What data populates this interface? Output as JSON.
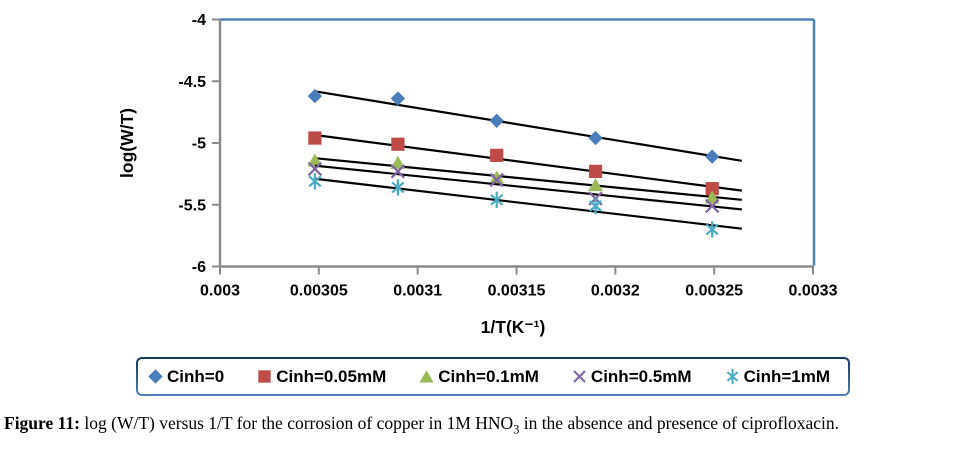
{
  "figure": {
    "caption_label": "Figure 11:",
    "caption_before_sub": " log (W/T) versus 1/T for the corrosion of copper in 1M HNO",
    "caption_sub": "3",
    "caption_after_sub": " in the absence and presence of ciprofloxacin."
  },
  "chart_data": {
    "type": "scatter",
    "title": "",
    "xlabel": "1/T(K⁻¹)",
    "ylabel": "log(W/T)",
    "xlim": [
      0.003,
      0.0033
    ],
    "ylim": [
      -6,
      -4
    ],
    "grid": false,
    "legend_position": "bottom",
    "axis_color": "#8a8a8a",
    "plot_border_color": "#4f81bd",
    "xticks": {
      "values": [
        0.003,
        0.00305,
        0.0031,
        0.00315,
        0.0032,
        0.00325,
        0.0033
      ],
      "labels": [
        "0.003",
        "0.00305",
        "0.0031",
        "0.00315",
        "0.0032",
        "0.00325",
        "0.0033"
      ]
    },
    "yticks": {
      "values": [
        -4,
        -4.5,
        -5,
        -5.5,
        -6
      ],
      "labels": [
        "-4",
        "-4.5",
        "-5",
        "-5.5",
        "-6"
      ]
    },
    "x": [
      0.003048,
      0.00309,
      0.00314,
      0.00319,
      0.003249
    ],
    "series": [
      {
        "name": "Cinh=0",
        "marker": "diamond",
        "color": "#4a7ebb",
        "values": [
          -4.62,
          -4.64,
          -4.82,
          -4.96,
          -5.11
        ]
      },
      {
        "name": "Cinh=0.05mM",
        "marker": "square",
        "color": "#bf4b47",
        "values": [
          -4.96,
          -5.01,
          -5.1,
          -5.23,
          -5.37
        ]
      },
      {
        "name": "Cinh=0.1mM",
        "marker": "triangle",
        "color": "#9aba58",
        "values": [
          -5.14,
          -5.16,
          -5.28,
          -5.34,
          -5.44
        ]
      },
      {
        "name": "Cinh=0.5mM",
        "marker": "x",
        "color": "#7e63a1",
        "values": [
          -5.21,
          -5.23,
          -5.3,
          -5.45,
          -5.51
        ]
      },
      {
        "name": "Cinh=1mM",
        "marker": "star6",
        "color": "#4aabc5",
        "values": [
          -5.31,
          -5.36,
          -5.46,
          -5.51,
          -5.7
        ]
      }
    ],
    "trendlines": {
      "show": true,
      "color": "#000000",
      "width": 2.2,
      "x_range": [
        0.003048,
        0.003264
      ]
    }
  }
}
